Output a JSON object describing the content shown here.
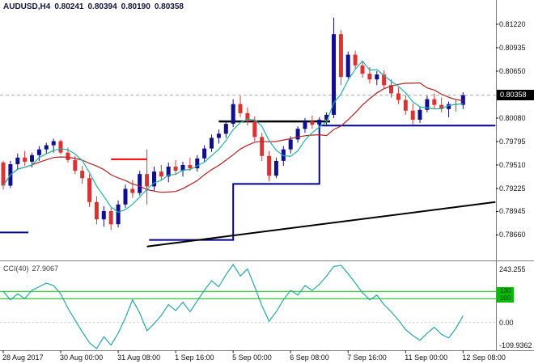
{
  "header": {
    "symbol_period": "AUDUSD,H4",
    "open": "0.80241",
    "high": "0.80394",
    "low": "0.80190",
    "close": "0.80358"
  },
  "price_axis": {
    "ticks": [
      {
        "label": "0.81220",
        "value": 0.8122
      },
      {
        "label": "0.80935",
        "value": 0.80935
      },
      {
        "label": "0.80650",
        "value": 0.8065
      },
      {
        "label": "0.80080",
        "value": 0.8008
      },
      {
        "label": "0.79795",
        "value": 0.79795
      },
      {
        "label": "0.79510",
        "value": 0.7951
      },
      {
        "label": "0.79225",
        "value": 0.79225
      },
      {
        "label": "0.78945",
        "value": 0.78945
      },
      {
        "label": "0.78660",
        "value": 0.7866
      }
    ],
    "current_label": "0.80358",
    "current_value": 0.80358
  },
  "time_axis": [
    {
      "label": "28 Aug 2017",
      "bar": 0
    },
    {
      "label": "30 Aug 00:00",
      "bar": 8
    },
    {
      "label": "31 Aug 08:00",
      "bar": 16
    },
    {
      "label": "1 Sep 16:00",
      "bar": 24
    },
    {
      "label": "5 Sep 00:00",
      "bar": 32
    },
    {
      "label": "6 Sep 08:00",
      "bar": 40
    },
    {
      "label": "7 Sep 16:00",
      "bar": 48
    },
    {
      "label": "11 Sep 00:00",
      "bar": 56
    },
    {
      "label": "12 Sep 08:00",
      "bar": 64
    }
  ],
  "indicator": {
    "name": "CCI(40)",
    "value": "27.9067",
    "axis_max_label": "243.255",
    "axis_zero_label": "0.00",
    "axis_min_label": "-109.9362",
    "levels": [
      {
        "label": "130",
        "value": 130
      },
      {
        "label": "100",
        "value": 100
      }
    ]
  },
  "chart_data": {
    "type": "candlestick",
    "symbol": "AUDUSD",
    "timeframe": "H4",
    "title": "AUDUSD,H4 0.80241 0.80394 0.80190 0.80358",
    "ylim": [
      0.7837,
      0.8147
    ],
    "grid": "off",
    "ohlc": [
      [
        0.7954,
        0.7956,
        0.7921,
        0.7926
      ],
      [
        0.7926,
        0.7956,
        0.7923,
        0.7952
      ],
      [
        0.7952,
        0.7965,
        0.7945,
        0.796
      ],
      [
        0.796,
        0.7968,
        0.795,
        0.7955
      ],
      [
        0.7955,
        0.7966,
        0.7948,
        0.7963
      ],
      [
        0.7963,
        0.7974,
        0.7956,
        0.797
      ],
      [
        0.797,
        0.7978,
        0.7965,
        0.7975
      ],
      [
        0.7975,
        0.7983,
        0.7966,
        0.798
      ],
      [
        0.798,
        0.7982,
        0.7964,
        0.7966
      ],
      [
        0.7966,
        0.7972,
        0.7954,
        0.7957
      ],
      [
        0.7957,
        0.7962,
        0.794,
        0.7944
      ],
      [
        0.7944,
        0.795,
        0.7928,
        0.7935
      ],
      [
        0.7935,
        0.794,
        0.79,
        0.7906
      ],
      [
        0.7906,
        0.7913,
        0.7879,
        0.7885
      ],
      [
        0.7885,
        0.7901,
        0.7876,
        0.7895
      ],
      [
        0.7895,
        0.7899,
        0.7872,
        0.7879
      ],
      [
        0.7879,
        0.7908,
        0.7875,
        0.7903
      ],
      [
        0.7903,
        0.7927,
        0.7899,
        0.7922
      ],
      [
        0.7922,
        0.7933,
        0.7911,
        0.7917
      ],
      [
        0.7917,
        0.7944,
        0.7914,
        0.794
      ],
      [
        0.794,
        0.797,
        0.7903,
        0.7925
      ],
      [
        0.7925,
        0.7949,
        0.7919,
        0.7943
      ],
      [
        0.7943,
        0.7951,
        0.7932,
        0.7937
      ],
      [
        0.7937,
        0.7954,
        0.793,
        0.7949
      ],
      [
        0.7949,
        0.7957,
        0.7939,
        0.7944
      ],
      [
        0.7944,
        0.7955,
        0.7937,
        0.7951
      ],
      [
        0.7951,
        0.796,
        0.7944,
        0.7947
      ],
      [
        0.7947,
        0.7963,
        0.7943,
        0.7959
      ],
      [
        0.7959,
        0.7975,
        0.7955,
        0.7971
      ],
      [
        0.7971,
        0.7988,
        0.7967,
        0.7984
      ],
      [
        0.7984,
        0.7994,
        0.7977,
        0.7989
      ],
      [
        0.7989,
        0.8005,
        0.7984,
        0.8001
      ],
      [
        0.8001,
        0.8031,
        0.7997,
        0.8025
      ],
      [
        0.8025,
        0.8035,
        0.8009,
        0.8014
      ],
      [
        0.8014,
        0.8021,
        0.7999,
        0.8004
      ],
      [
        0.8004,
        0.801,
        0.798,
        0.7985
      ],
      [
        0.7985,
        0.799,
        0.7956,
        0.7962
      ],
      [
        0.7962,
        0.7968,
        0.7931,
        0.7938
      ],
      [
        0.7938,
        0.796,
        0.7935,
        0.7956
      ],
      [
        0.7956,
        0.7974,
        0.795,
        0.797
      ],
      [
        0.797,
        0.7986,
        0.7965,
        0.7982
      ],
      [
        0.7982,
        0.7998,
        0.7978,
        0.7995
      ],
      [
        0.7995,
        0.8008,
        0.799,
        0.8004
      ],
      [
        0.8004,
        0.8011,
        0.7995,
        0.8
      ],
      [
        0.8,
        0.8009,
        0.7993,
        0.8006
      ],
      [
        0.8006,
        0.8015,
        0.8,
        0.8012
      ],
      [
        0.8012,
        0.813,
        0.8008,
        0.811
      ],
      [
        0.811,
        0.8115,
        0.8048,
        0.8058
      ],
      [
        0.8058,
        0.8089,
        0.8056,
        0.8085
      ],
      [
        0.8085,
        0.809,
        0.8068,
        0.8072
      ],
      [
        0.8072,
        0.8078,
        0.8057,
        0.8062
      ],
      [
        0.8062,
        0.807,
        0.805,
        0.8055
      ],
      [
        0.8055,
        0.8065,
        0.8048,
        0.8061
      ],
      [
        0.8061,
        0.8066,
        0.8044,
        0.8048
      ],
      [
        0.8048,
        0.8055,
        0.8033,
        0.8038
      ],
      [
        0.8038,
        0.8045,
        0.8025,
        0.803
      ],
      [
        0.803,
        0.8036,
        0.8012,
        0.8017
      ],
      [
        0.8017,
        0.8026,
        0.8,
        0.8006
      ],
      [
        0.8006,
        0.8022,
        0.8002,
        0.8018
      ],
      [
        0.8018,
        0.8035,
        0.8015,
        0.8031
      ],
      [
        0.8031,
        0.8038,
        0.8019,
        0.8024
      ],
      [
        0.8024,
        0.8033,
        0.8015,
        0.8019
      ],
      [
        0.8019,
        0.8028,
        0.8009,
        0.8025
      ],
      [
        0.8025,
        0.8031,
        0.8016,
        0.80241
      ],
      [
        0.80241,
        0.80394,
        0.8019,
        0.80358
      ]
    ],
    "ma_fast_period": 5,
    "ma_slow_period": 13,
    "objects": {
      "step_line": {
        "lone_segment": {
          "from_bar": -0.5,
          "to_bar": 3.5,
          "level": 0.7869
        },
        "segments": [
          {
            "from_bar": 20.3,
            "to_bar": 32,
            "level": 0.786
          },
          {
            "from_bar": 32,
            "to_bar": 44,
            "level": 0.7928
          },
          {
            "from_bar": 44,
            "to_bar": 68.5,
            "level": 0.7999
          }
        ]
      },
      "trendline": {
        "from_bar": 20,
        "from_price": 0.7852,
        "to_bar": 68.5,
        "to_price": 0.7906
      },
      "red_hline": {
        "from_bar": 15,
        "to_bar": 20,
        "price": 0.7958
      },
      "black_hline": {
        "from_bar": 30,
        "to_bar": 45.5,
        "price": 0.8004
      }
    },
    "cci": {
      "period": 40,
      "current": 27.9067,
      "axis_max": 243.255,
      "axis_min": -109.9362,
      "level_lines": [
        130,
        100
      ],
      "values": [
        130,
        95,
        120,
        100,
        135,
        150,
        165,
        155,
        120,
        60,
        10,
        -40,
        -85,
        -109.9,
        -60,
        -95,
        -45,
        20,
        95,
        40,
        -35,
        -5,
        30,
        75,
        50,
        85,
        45,
        90,
        135,
        175,
        150,
        200,
        243.3,
        195,
        225,
        150,
        70,
        5,
        45,
        95,
        135,
        115,
        155,
        135,
        160,
        195,
        235,
        240,
        205,
        165,
        125,
        95,
        115,
        75,
        45,
        10,
        -30,
        -55,
        -75,
        -45,
        -20,
        -50,
        -65,
        -25,
        27.9
      ]
    }
  },
  "colors": {
    "bull": "#10108c",
    "bear": "#d93434",
    "ma_fast": "#20B2AA",
    "ma_slow": "#B22222",
    "step": "#00008B",
    "object_black": "#000000",
    "object_red": "#FF0000",
    "cci": "#2aa7a7",
    "level_green": "#00BB00",
    "zero_line": "#cccccc",
    "axis_text": "#111111",
    "separator": "#808080",
    "price_line": "#aaaaaa",
    "tag_bg": "#000000",
    "tag_text": "#ffffff"
  }
}
